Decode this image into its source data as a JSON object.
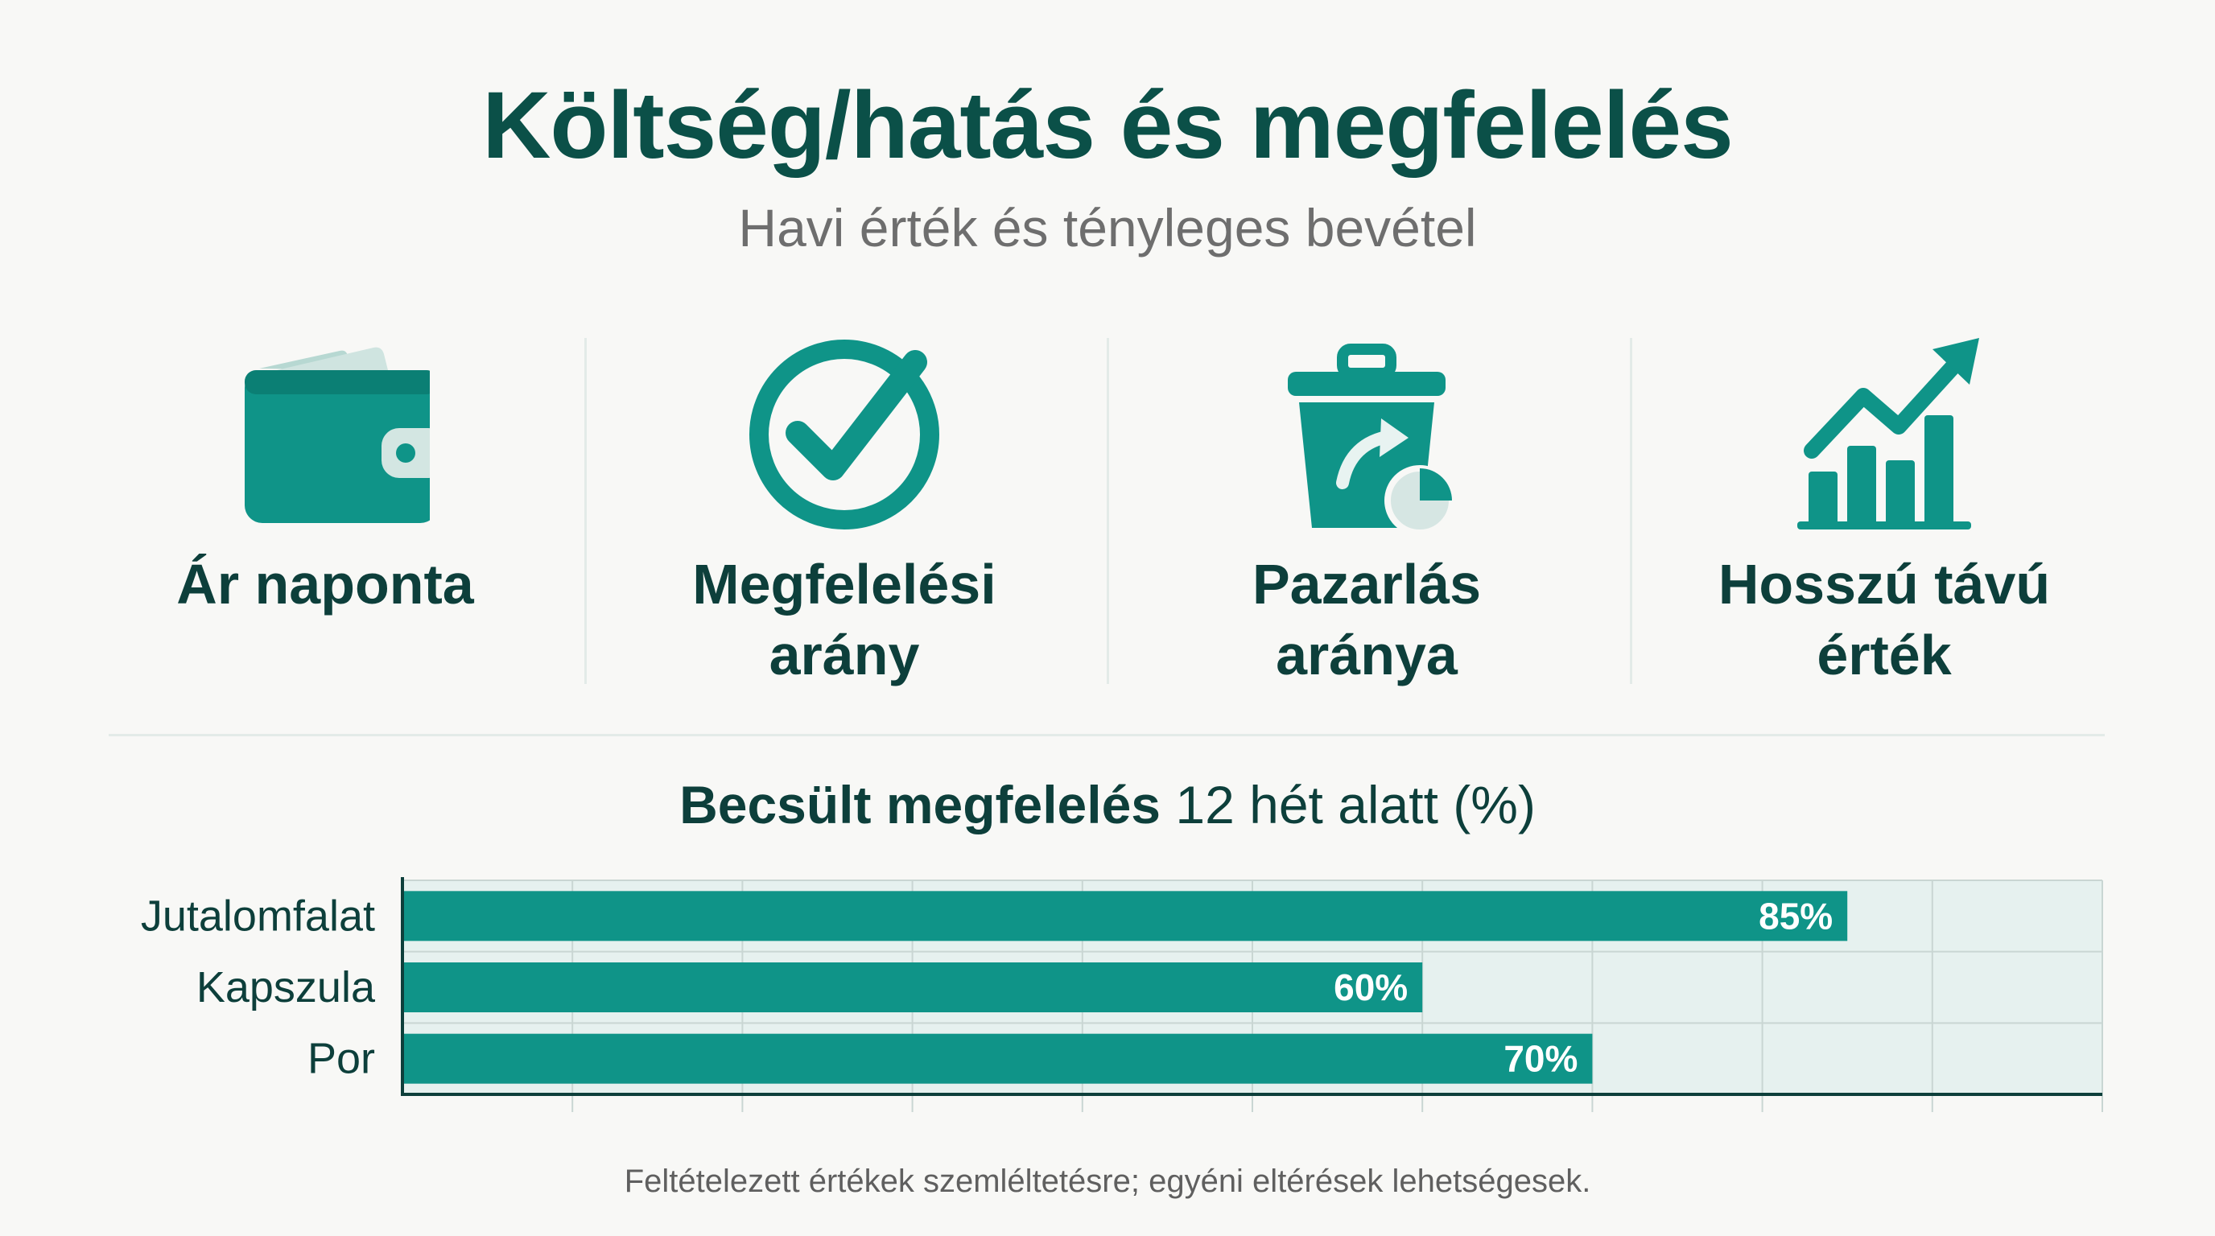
{
  "header": {
    "title": "Költség/hatás és megfelelés",
    "subtitle": "Havi érték és tényleges bevétel"
  },
  "features": [
    {
      "icon": "wallet-icon",
      "label_line1": "Ár naponta",
      "label_line2": ""
    },
    {
      "icon": "check-circle-icon",
      "label_line1": "Megfelelési",
      "label_line2": "arány"
    },
    {
      "icon": "trash-bin-icon",
      "label_line1": "Pazarlás",
      "label_line2": "aránya"
    },
    {
      "icon": "growth-chart-icon",
      "label_line1": "Hosszú távú",
      "label_line2": "érték"
    }
  ],
  "colors": {
    "accent": "#0f9488",
    "dark_text": "#0d3f3b",
    "plot_background": "#e6f1ef",
    "grid": "#c9d6d3"
  },
  "chart_title": {
    "bold_part": "Becsült megfelelés",
    "regular_part": "12 hét alatt (%)"
  },
  "chart_data": {
    "type": "bar",
    "orientation": "horizontal",
    "title": "Becsült megfelelés 12 hét alatt (%)",
    "categories": [
      "Jutalomfalat",
      "Kapszula",
      "Por"
    ],
    "values": [
      85,
      60,
      70
    ],
    "value_labels": [
      "85%",
      "60%",
      "70%"
    ],
    "xlim": [
      0,
      100
    ],
    "grid": true,
    "legend": "none"
  },
  "footnote": "Feltételezett értékek szemléltetésre; egyéni eltérések lehetségesek."
}
